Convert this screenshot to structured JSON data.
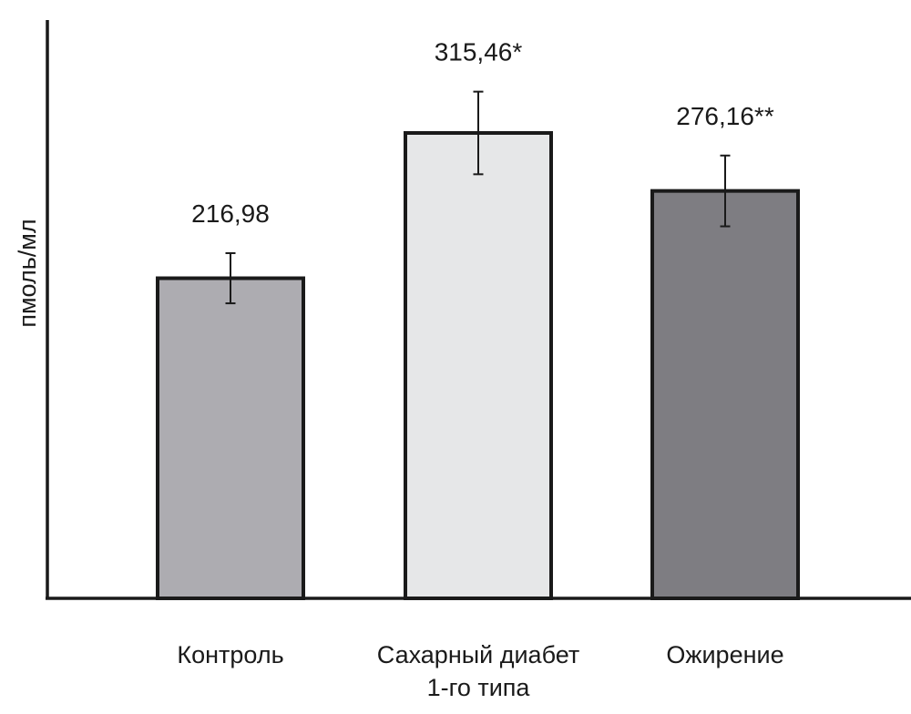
{
  "chart_data": {
    "type": "bar",
    "title": "",
    "xlabel": "",
    "ylabel": "пмоль/мл",
    "categories": [
      [
        "Контроль"
      ],
      [
        "Сахарный диабет",
        "1-го типа"
      ],
      [
        "Ожирение"
      ]
    ],
    "values": [
      216.98,
      315.46,
      276.16
    ],
    "value_labels": [
      "216,98",
      "315,46*",
      "276,16**"
    ],
    "errors": [
      17,
      28,
      24
    ],
    "colors": [
      "#adacb1",
      "#e6e7e8",
      "#7e7d82"
    ],
    "ylim": [
      0,
      392
    ],
    "grid": false
  }
}
